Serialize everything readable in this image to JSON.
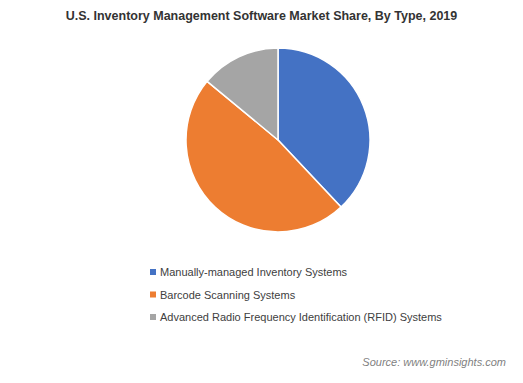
{
  "chart_data": {
    "type": "pie",
    "title": "U.S. Inventory Management Software Market Share, By Type, 2019",
    "categories": [
      "Manually-managed Inventory Systems",
      "Barcode Scanning Systems",
      "Advanced Radio Frequency Identification (RFID) Systems"
    ],
    "values": [
      38,
      48,
      14
    ],
    "colors": [
      "#4472c4",
      "#ed7d31",
      "#a5a5a5"
    ],
    "legend": "bottom",
    "source": "Source: www.gminsights.com"
  }
}
